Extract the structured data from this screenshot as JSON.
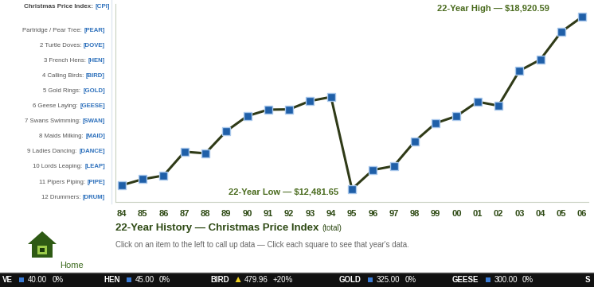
{
  "chart_data": {
    "type": "line",
    "title": "22-Year History — Christmas Price Index",
    "title_note": "(total)",
    "subtitle": "Click on an item to the left to call up data — Click each square to see that year's data.",
    "categories": [
      "84",
      "85",
      "86",
      "87",
      "88",
      "89",
      "90",
      "91",
      "92",
      "93",
      "94",
      "95",
      "96",
      "97",
      "98",
      "99",
      "00",
      "01",
      "02",
      "03",
      "04",
      "05",
      "06"
    ],
    "values": [
      12623,
      12850,
      12986,
      13876,
      13817,
      14648,
      15211,
      15449,
      15460,
      15775,
      15923,
      12481.65,
      13194,
      13342,
      14262,
      14944,
      15211,
      15745,
      15597,
      16902,
      17318,
      18356,
      18920.59
    ],
    "color": "#2f3a17",
    "marker": "square",
    "ylim": [
      12000,
      19400
    ],
    "yticks": [],
    "tick_labels": "x",
    "annotations": [
      {
        "text": "22-Year High — $18,920.59",
        "x": "06"
      },
      {
        "text": "22-Year Low — $12,481.65",
        "x": "95"
      }
    ]
  },
  "sidebar": {
    "header": {
      "name": "Christmas Price Index:",
      "code": "[CPI]"
    },
    "items": [
      {
        "name": "Partridge / Pear Tree:",
        "code": "[PEAR]"
      },
      {
        "name": "2 Turtle Doves:",
        "code": "[DOVE]"
      },
      {
        "name": "3 French Hens:",
        "code": "[HEN]"
      },
      {
        "name": "4 Calling Birds:",
        "code": "[BIRD]"
      },
      {
        "name": "5 Gold Rings:",
        "code": "[GOLD]"
      },
      {
        "name": "6 Geese Laying:",
        "code": "[GEESE]"
      },
      {
        "name": "7 Swans Swimming:",
        "code": "[SWAN]"
      },
      {
        "name": "8 Maids Milking:",
        "code": "[MAID]"
      },
      {
        "name": "9 Ladies Dancing:",
        "code": "[DANCE]"
      },
      {
        "name": "10 Lords Leaping:",
        "code": "[LEAP]"
      },
      {
        "name": "11 Pipers Piping:",
        "code": "[PIPE]"
      },
      {
        "name": "12 Drummers:",
        "code": "[DRUM]"
      }
    ]
  },
  "home": "Home",
  "ticker": [
    {
      "code": "VE",
      "price": "40.00",
      "change": "0%"
    },
    {
      "code": "HEN",
      "price": "45.00",
      "change": "0%"
    },
    {
      "code": "BIRD",
      "price": "479.96",
      "change": "+20%"
    },
    {
      "code": "GOLD",
      "price": "325.00",
      "change": "0%"
    },
    {
      "code": "GEESE",
      "price": "300.00",
      "change": "0%"
    },
    {
      "code": "S"
    }
  ]
}
